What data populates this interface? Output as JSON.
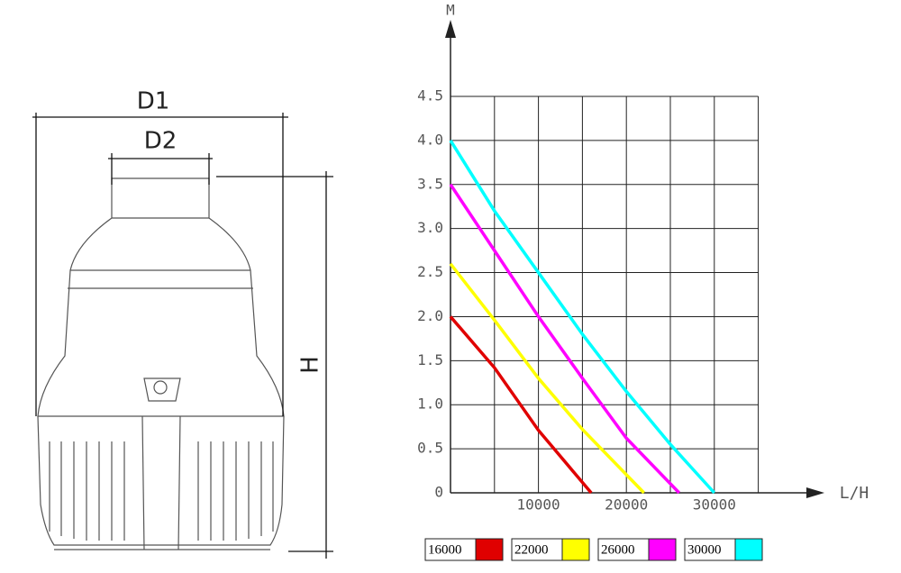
{
  "drawing": {
    "d1": "D1",
    "d2": "D2",
    "h": "H"
  },
  "chart_data": {
    "type": "line",
    "y_label": "M",
    "x_label": "L/H",
    "xlim": [
      0,
      35000
    ],
    "ylim": [
      0,
      4.5
    ],
    "xticks": [
      10000,
      20000,
      30000
    ],
    "x_grid": [
      5000,
      10000,
      15000,
      20000,
      25000,
      30000,
      35000
    ],
    "yticks": [
      0,
      0.5,
      {
        "value": 1,
        "label": "1.0"
      },
      1.5,
      {
        "value": 2,
        "label": "2.0"
      },
      2.5,
      {
        "value": 3,
        "label": "3.0"
      },
      3.5,
      {
        "value": 4,
        "label": "4.0"
      },
      4.5
    ],
    "grid": true,
    "series": [
      {
        "name": "16000",
        "color": "#e00000",
        "x": [
          0,
          5000,
          10000,
          16000
        ],
        "values": [
          2.0,
          1.42,
          0.71,
          0
        ]
      },
      {
        "name": "22000",
        "color": "#ffff00",
        "x": [
          0,
          5000,
          10000,
          15000,
          22000
        ],
        "values": [
          2.6,
          1.96,
          1.3,
          0.72,
          0
        ]
      },
      {
        "name": "26000",
        "color": "#ff00ff",
        "x": [
          0,
          5000,
          10000,
          15000,
          20000,
          26000
        ],
        "values": [
          3.5,
          2.75,
          2.0,
          1.3,
          0.62,
          0
        ]
      },
      {
        "name": "30000",
        "color": "#00ffff",
        "x": [
          0,
          5000,
          10000,
          15000,
          20000,
          25000,
          30000
        ],
        "values": [
          4.0,
          3.2,
          2.5,
          1.8,
          1.15,
          0.55,
          0
        ]
      }
    ]
  }
}
